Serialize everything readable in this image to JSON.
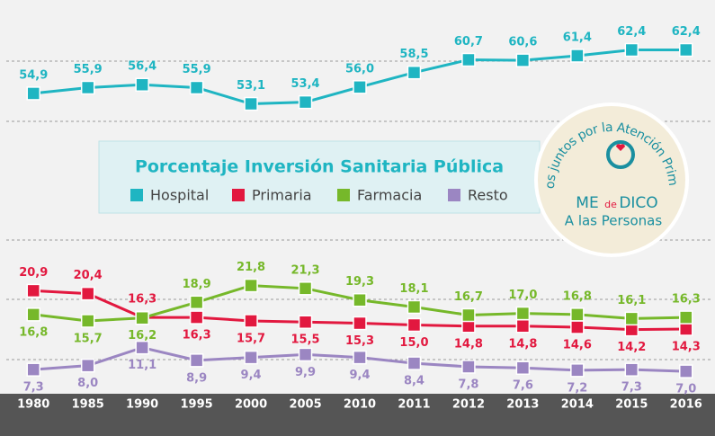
{
  "chart_data": {
    "type": "line",
    "title": "Porcentaje Inversión Sanitaria Pública",
    "categories": [
      "1980",
      "1985",
      "1990",
      "1995",
      "2000",
      "2005",
      "2010",
      "2011",
      "2012",
      "2013",
      "2014",
      "2015",
      "2016"
    ],
    "ylim": [
      3.3,
      71
    ],
    "series": [
      {
        "name": "Hospital",
        "color": "#1fb5c2",
        "values": [
          54.9,
          55.9,
          56.4,
          55.9,
          53.1,
          53.4,
          56.0,
          58.5,
          60.7,
          60.6,
          61.4,
          62.4,
          62.4
        ],
        "value_labels": [
          "54,9",
          "55,9",
          "56,4",
          "55,9",
          "53,1",
          "53,4",
          "56,0",
          "58,5",
          "60,7",
          "60,6",
          "61,4",
          "62,4",
          "62,4"
        ]
      },
      {
        "name": "Primaria",
        "color": "#e2183f",
        "values": [
          20.9,
          20.4,
          16.3,
          16.3,
          15.7,
          15.5,
          15.3,
          15.0,
          14.8,
          14.8,
          14.6,
          14.2,
          14.3
        ],
        "value_labels": [
          "20,9",
          "20,4",
          "16,3",
          "16,3",
          "15,7",
          "15,5",
          "15,3",
          "15,0",
          "14,8",
          "14,8",
          "14,6",
          "14,2",
          "14,3"
        ]
      },
      {
        "name": "Farmacia",
        "color": "#76b82a",
        "values": [
          16.8,
          15.7,
          16.2,
          18.9,
          21.8,
          21.3,
          19.3,
          18.1,
          16.7,
          17.0,
          16.8,
          16.1,
          16.3
        ],
        "value_labels": [
          "16,8",
          "15,7",
          "16,2",
          "18,9",
          "21,8",
          "21,3",
          "19,3",
          "18,1",
          "16,7",
          "17,0",
          "16,8",
          "16,1",
          "16,3"
        ]
      },
      {
        "name": "Resto",
        "color": "#9b86c2",
        "values": [
          7.3,
          8.0,
          11.1,
          8.9,
          9.4,
          9.9,
          9.4,
          8.4,
          7.8,
          7.6,
          7.2,
          7.3,
          7.0
        ],
        "value_labels": [
          "7,3",
          "8,0",
          "11,1",
          "8,9",
          "9,4",
          "9,9",
          "9,4",
          "8,4",
          "7,8",
          "7,6",
          "7,2",
          "7,3",
          "7,0"
        ]
      }
    ],
    "annotations": [
      "Todos juntos por la Atención Primaria",
      "ME",
      "de",
      "DICO",
      "A las Personas"
    ]
  }
}
